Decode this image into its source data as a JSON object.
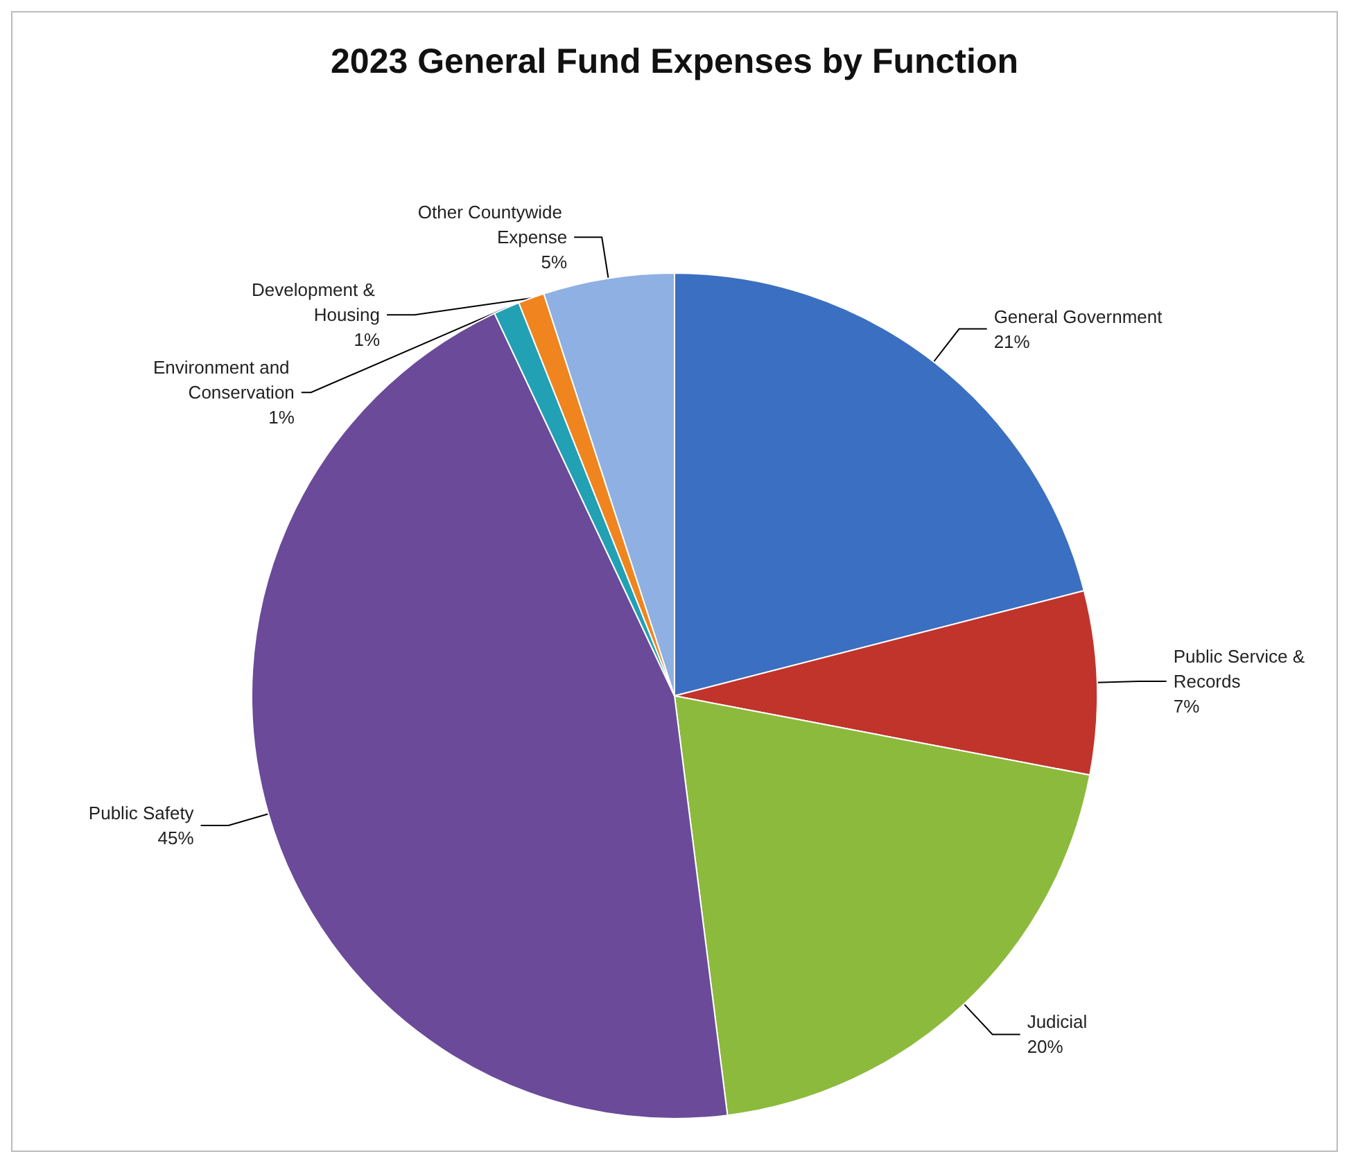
{
  "chart_data": {
    "type": "pie",
    "title": "2023 General Fund Expenses by Function",
    "categories": [
      "General Government",
      "Public Service & Records",
      "Judicial",
      "Public Safety",
      "Environment and Conservation",
      "Development & Housing",
      "Other Countywide Expense"
    ],
    "values": [
      21,
      7,
      20,
      45,
      1,
      1,
      5
    ],
    "value_labels": [
      "21%",
      "7%",
      "20%",
      "45%",
      "1%",
      "1%",
      "5%"
    ],
    "colors": [
      "#3b6fc1",
      "#c0342c",
      "#8cba3c",
      "#6a4a99",
      "#22a0b4",
      "#f0841e",
      "#8eb0e2"
    ],
    "legend": false
  }
}
